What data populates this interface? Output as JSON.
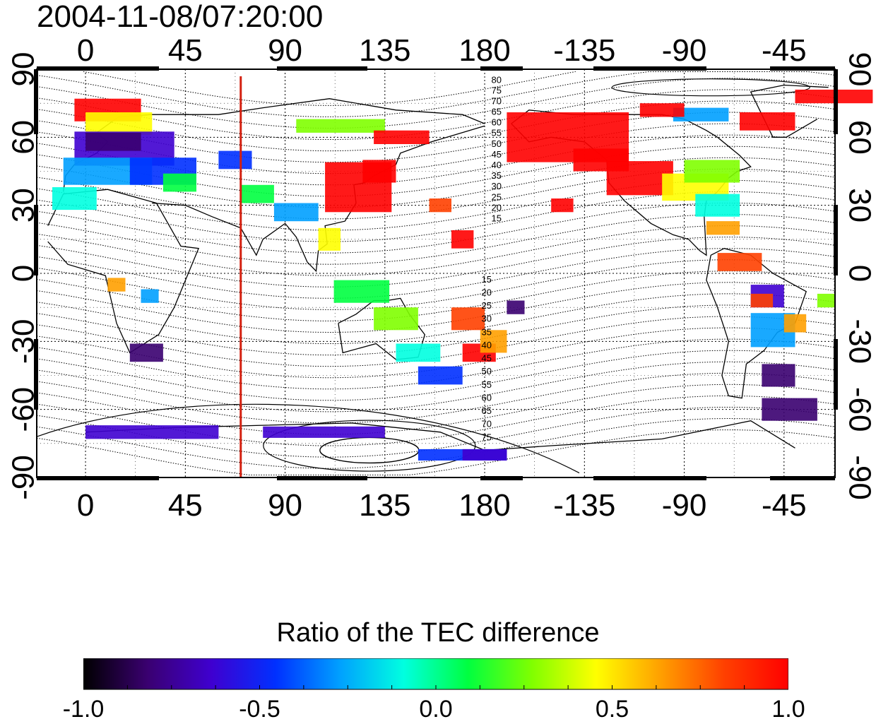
{
  "title": "2004-11-08/07:20:00",
  "map": {
    "lon_ticks": [
      "0",
      "45",
      "90",
      "135",
      "180",
      "-135",
      "-90",
      "-45"
    ],
    "lat_ticks": [
      "90",
      "60",
      "30",
      "0",
      "-30",
      "-60",
      "-90"
    ],
    "north_contour_labels": [
      "80",
      "75",
      "70",
      "65",
      "60",
      "55",
      "50",
      "45",
      "40",
      "35",
      "30",
      "25",
      "20",
      "15"
    ],
    "south_contour_labels": [
      "15",
      "20",
      "25",
      "30",
      "35",
      "40",
      "45",
      "50",
      "55",
      "60",
      "65",
      "70",
      "75"
    ],
    "meridian_line_longitude": 70,
    "colors": {
      "meridian_line": "#d42010",
      "contour": "#000000",
      "grid": "#000000",
      "frame": "#000000"
    }
  },
  "colorbar": {
    "title": "Ratio of the TEC difference",
    "range": [
      -1.0,
      1.0
    ],
    "labels": [
      "-1.0",
      "-0.5",
      "0.0",
      "0.5",
      "1.0"
    ],
    "colormap": [
      "#000000",
      "#3a0070",
      "#3f00d0",
      "#0030ff",
      "#00a0ff",
      "#00ffe0",
      "#00ff40",
      "#80ff00",
      "#ffff00",
      "#ffa000",
      "#ff4000",
      "#ff0000"
    ]
  }
}
